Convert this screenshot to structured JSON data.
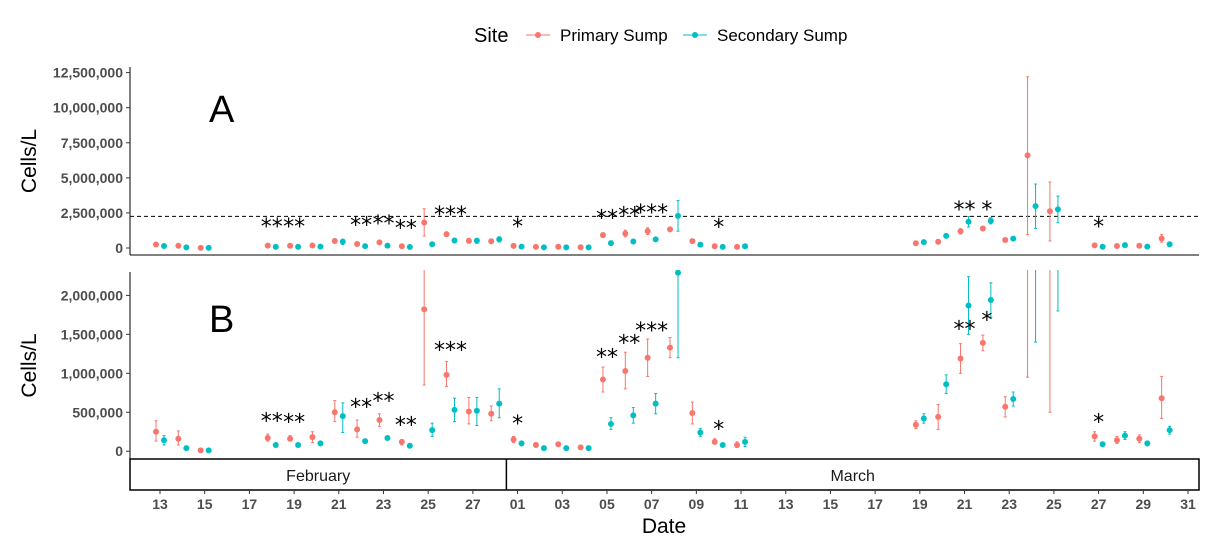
{
  "legend": {
    "title": "Site",
    "entries": [
      {
        "name": "Primary Sump",
        "color": "#F8766D"
      },
      {
        "name": "Secondary Sump",
        "color": "#00BFC4"
      }
    ]
  },
  "colors": {
    "primary": "#F8766D",
    "secondary": "#00BFC4",
    "axis": "#000000",
    "tick_text": "#4d4d4d"
  },
  "chart_data": {
    "type": "scatter",
    "xlabel": "Date",
    "ylabel": "Cells/L",
    "threshold": 2250000,
    "month_strips": [
      {
        "label": "February",
        "from": "2021-02-12",
        "to": "2021-02-28"
      },
      {
        "label": "March",
        "from": "2021-03-01",
        "to": "2021-03-31"
      }
    ],
    "x_ticks": [
      {
        "date": "2021-02-13",
        "label": "13"
      },
      {
        "date": "2021-02-15",
        "label": "15"
      },
      {
        "date": "2021-02-17",
        "label": "17"
      },
      {
        "date": "2021-02-19",
        "label": "19"
      },
      {
        "date": "2021-02-21",
        "label": "21"
      },
      {
        "date": "2021-02-23",
        "label": "23"
      },
      {
        "date": "2021-02-25",
        "label": "25"
      },
      {
        "date": "2021-02-27",
        "label": "27"
      },
      {
        "date": "2021-03-01",
        "label": "01"
      },
      {
        "date": "2021-03-03",
        "label": "03"
      },
      {
        "date": "2021-03-05",
        "label": "05"
      },
      {
        "date": "2021-03-07",
        "label": "07"
      },
      {
        "date": "2021-03-09",
        "label": "09"
      },
      {
        "date": "2021-03-11",
        "label": "11"
      },
      {
        "date": "2021-03-13",
        "label": "13"
      },
      {
        "date": "2021-03-15",
        "label": "15"
      },
      {
        "date": "2021-03-17",
        "label": "17"
      },
      {
        "date": "2021-03-19",
        "label": "19"
      },
      {
        "date": "2021-03-21",
        "label": "21"
      },
      {
        "date": "2021-03-23",
        "label": "23"
      },
      {
        "date": "2021-03-25",
        "label": "25"
      },
      {
        "date": "2021-03-27",
        "label": "27"
      },
      {
        "date": "2021-03-29",
        "label": "29"
      },
      {
        "date": "2021-03-31",
        "label": "31"
      }
    ],
    "panels": [
      {
        "letter": "A",
        "ylim": [
          -500000,
          12900000
        ],
        "y_ticks": [
          {
            "value": 0,
            "label": "0"
          },
          {
            "value": 2500000,
            "label": "2,500,000"
          },
          {
            "value": 5000000,
            "label": "5,000,000"
          },
          {
            "value": 7500000,
            "label": "7,500,000"
          },
          {
            "value": 10000000,
            "label": "10,000,000"
          },
          {
            "value": 12500000,
            "label": "12,500,000"
          }
        ]
      },
      {
        "letter": "B",
        "ylim": [
          -100000,
          2300000
        ],
        "y_ticks": [
          {
            "value": 0,
            "label": "0"
          },
          {
            "value": 500000,
            "label": "500,000"
          },
          {
            "value": 1000000,
            "label": "1,000,000"
          },
          {
            "value": 1500000,
            "label": "1,500,000"
          },
          {
            "value": 2000000,
            "label": "2,000,000"
          }
        ]
      }
    ],
    "series": [
      {
        "name": "Primary Sump",
        "color": "#F8766D",
        "points": [
          {
            "date": "2021-02-13",
            "y": 250000,
            "lo": 130000,
            "hi": 390000
          },
          {
            "date": "2021-02-14",
            "y": 160000,
            "lo": 80000,
            "hi": 260000
          },
          {
            "date": "2021-02-15",
            "y": 10000,
            "lo": 0,
            "hi": 20000
          },
          {
            "date": "2021-02-18",
            "y": 170000,
            "lo": 130000,
            "hi": 220000
          },
          {
            "date": "2021-02-19",
            "y": 160000,
            "lo": 130000,
            "hi": 200000
          },
          {
            "date": "2021-02-20",
            "y": 180000,
            "lo": 110000,
            "hi": 250000
          },
          {
            "date": "2021-02-21",
            "y": 500000,
            "lo": 380000,
            "hi": 650000
          },
          {
            "date": "2021-02-22",
            "y": 280000,
            "lo": 180000,
            "hi": 400000
          },
          {
            "date": "2021-02-23",
            "y": 400000,
            "lo": 320000,
            "hi": 480000
          },
          {
            "date": "2021-02-24",
            "y": 120000,
            "lo": 80000,
            "hi": 150000
          },
          {
            "date": "2021-02-25",
            "y": 1820000,
            "lo": 850000,
            "hi": 2800000
          },
          {
            "date": "2021-02-26",
            "y": 980000,
            "lo": 830000,
            "hi": 1150000
          },
          {
            "date": "2021-02-27",
            "y": 510000,
            "lo": 350000,
            "hi": 690000
          },
          {
            "date": "2021-02-28",
            "y": 480000,
            "lo": 390000,
            "hi": 580000
          },
          {
            "date": "2021-03-01",
            "y": 150000,
            "lo": 110000,
            "hi": 190000
          },
          {
            "date": "2021-03-02",
            "y": 80000,
            "lo": 60000,
            "hi": 110000
          },
          {
            "date": "2021-03-03",
            "y": 90000,
            "lo": 70000,
            "hi": 110000
          },
          {
            "date": "2021-03-04",
            "y": 50000,
            "lo": 30000,
            "hi": 70000
          },
          {
            "date": "2021-03-05",
            "y": 920000,
            "lo": 760000,
            "hi": 1080000
          },
          {
            "date": "2021-03-06",
            "y": 1030000,
            "lo": 800000,
            "hi": 1270000
          },
          {
            "date": "2021-03-07",
            "y": 1200000,
            "lo": 960000,
            "hi": 1440000
          },
          {
            "date": "2021-03-08",
            "y": 1330000,
            "lo": 1200000,
            "hi": 1460000
          },
          {
            "date": "2021-03-09",
            "y": 490000,
            "lo": 350000,
            "hi": 630000
          },
          {
            "date": "2021-03-10",
            "y": 120000,
            "lo": 90000,
            "hi": 160000
          },
          {
            "date": "2021-03-11",
            "y": 80000,
            "lo": 50000,
            "hi": 120000
          },
          {
            "date": "2021-03-19",
            "y": 340000,
            "lo": 290000,
            "hi": 390000
          },
          {
            "date": "2021-03-20",
            "y": 440000,
            "lo": 280000,
            "hi": 600000
          },
          {
            "date": "2021-03-21",
            "y": 1190000,
            "lo": 1000000,
            "hi": 1380000
          },
          {
            "date": "2021-03-22",
            "y": 1390000,
            "lo": 1290000,
            "hi": 1490000
          },
          {
            "date": "2021-03-23",
            "y": 570000,
            "lo": 440000,
            "hi": 700000
          },
          {
            "date": "2021-03-24",
            "y": 6600000,
            "lo": 950000,
            "hi": 12200000
          },
          {
            "date": "2021-03-25",
            "y": 2620000,
            "lo": 500000,
            "hi": 4700000
          },
          {
            "date": "2021-03-27",
            "y": 190000,
            "lo": 130000,
            "hi": 250000
          },
          {
            "date": "2021-03-28",
            "y": 140000,
            "lo": 100000,
            "hi": 190000
          },
          {
            "date": "2021-03-29",
            "y": 160000,
            "lo": 110000,
            "hi": 210000
          },
          {
            "date": "2021-03-30",
            "y": 680000,
            "lo": 420000,
            "hi": 960000
          }
        ]
      },
      {
        "name": "Secondary Sump",
        "color": "#00BFC4",
        "points": [
          {
            "date": "2021-02-13",
            "y": 140000,
            "lo": 80000,
            "hi": 200000
          },
          {
            "date": "2021-02-14",
            "y": 40000,
            "lo": 30000,
            "hi": 50000
          },
          {
            "date": "2021-02-15",
            "y": 10000,
            "lo": 0,
            "hi": 20000
          },
          {
            "date": "2021-02-18",
            "y": 80000,
            "lo": 60000,
            "hi": 100000
          },
          {
            "date": "2021-02-19",
            "y": 80000,
            "lo": 60000,
            "hi": 100000
          },
          {
            "date": "2021-02-20",
            "y": 100000,
            "lo": 80000,
            "hi": 120000
          },
          {
            "date": "2021-02-21",
            "y": 450000,
            "lo": 240000,
            "hi": 620000
          },
          {
            "date": "2021-02-22",
            "y": 130000,
            "lo": 110000,
            "hi": 150000
          },
          {
            "date": "2021-02-23",
            "y": 170000,
            "lo": 150000,
            "hi": 190000
          },
          {
            "date": "2021-02-24",
            "y": 70000,
            "lo": 50000,
            "hi": 90000
          },
          {
            "date": "2021-02-25",
            "y": 270000,
            "lo": 190000,
            "hi": 360000
          },
          {
            "date": "2021-02-26",
            "y": 530000,
            "lo": 380000,
            "hi": 680000
          },
          {
            "date": "2021-02-27",
            "y": 520000,
            "lo": 330000,
            "hi": 690000
          },
          {
            "date": "2021-02-28",
            "y": 610000,
            "lo": 430000,
            "hi": 800000
          },
          {
            "date": "2021-03-01",
            "y": 100000,
            "lo": 70000,
            "hi": 120000
          },
          {
            "date": "2021-03-02",
            "y": 40000,
            "lo": 20000,
            "hi": 60000
          },
          {
            "date": "2021-03-03",
            "y": 40000,
            "lo": 20000,
            "hi": 60000
          },
          {
            "date": "2021-03-04",
            "y": 40000,
            "lo": 20000,
            "hi": 60000
          },
          {
            "date": "2021-03-05",
            "y": 350000,
            "lo": 280000,
            "hi": 430000
          },
          {
            "date": "2021-03-06",
            "y": 460000,
            "lo": 360000,
            "hi": 560000
          },
          {
            "date": "2021-03-07",
            "y": 610000,
            "lo": 480000,
            "hi": 740000
          },
          {
            "date": "2021-03-08",
            "y": 2290000,
            "lo": 1200000,
            "hi": 3380000
          },
          {
            "date": "2021-03-09",
            "y": 240000,
            "lo": 190000,
            "hi": 290000
          },
          {
            "date": "2021-03-10",
            "y": 80000,
            "lo": 60000,
            "hi": 100000
          },
          {
            "date": "2021-03-11",
            "y": 120000,
            "lo": 60000,
            "hi": 180000
          },
          {
            "date": "2021-03-19",
            "y": 420000,
            "lo": 360000,
            "hi": 480000
          },
          {
            "date": "2021-03-20",
            "y": 860000,
            "lo": 740000,
            "hi": 980000
          },
          {
            "date": "2021-03-21",
            "y": 1870000,
            "lo": 1500000,
            "hi": 2240000
          },
          {
            "date": "2021-03-22",
            "y": 1940000,
            "lo": 1720000,
            "hi": 2160000
          },
          {
            "date": "2021-03-23",
            "y": 670000,
            "lo": 580000,
            "hi": 760000
          },
          {
            "date": "2021-03-24",
            "y": 2980000,
            "lo": 1400000,
            "hi": 4560000
          },
          {
            "date": "2021-03-25",
            "y": 2750000,
            "lo": 1800000,
            "hi": 3700000
          },
          {
            "date": "2021-03-27",
            "y": 90000,
            "lo": 70000,
            "hi": 110000
          },
          {
            "date": "2021-03-28",
            "y": 200000,
            "lo": 150000,
            "hi": 250000
          },
          {
            "date": "2021-03-29",
            "y": 100000,
            "lo": 70000,
            "hi": 130000
          },
          {
            "date": "2021-03-30",
            "y": 270000,
            "lo": 220000,
            "hi": 320000
          }
        ]
      }
    ],
    "annotations": [
      {
        "date": "2021-02-18",
        "label": "**",
        "a_y": 2000000,
        "b_y": 470000
      },
      {
        "date": "2021-02-19",
        "label": "**",
        "a_y": 2000000,
        "b_y": 460000
      },
      {
        "date": "2021-02-22",
        "label": "**",
        "a_y": 2100000,
        "b_y": 650000
      },
      {
        "date": "2021-02-23",
        "label": "**",
        "a_y": 2200000,
        "b_y": 730000
      },
      {
        "date": "2021-02-24",
        "label": "**",
        "a_y": 1900000,
        "b_y": 420000
      },
      {
        "date": "2021-02-26",
        "label": "***",
        "a_y": 2850000,
        "b_y": 1380000
      },
      {
        "date": "2021-03-01",
        "label": "*",
        "a_y": 2000000,
        "b_y": 440000
      },
      {
        "date": "2021-03-05",
        "label": "**",
        "a_y": 2600000,
        "b_y": 1290000
      },
      {
        "date": "2021-03-06",
        "label": "**",
        "a_y": 2800000,
        "b_y": 1470000
      },
      {
        "date": "2021-03-07",
        "label": "***",
        "a_y": 3000000,
        "b_y": 1630000
      },
      {
        "date": "2021-03-10",
        "label": "*",
        "a_y": 1950000,
        "b_y": 370000
      },
      {
        "date": "2021-03-21",
        "label": "**",
        "a_y": 3200000,
        "b_y": 1650000
      },
      {
        "date": "2021-03-22",
        "label": "*",
        "a_y": 3200000,
        "b_y": 1770000
      },
      {
        "date": "2021-03-27",
        "label": "*",
        "a_y": 2000000,
        "b_y": 460000
      }
    ]
  }
}
